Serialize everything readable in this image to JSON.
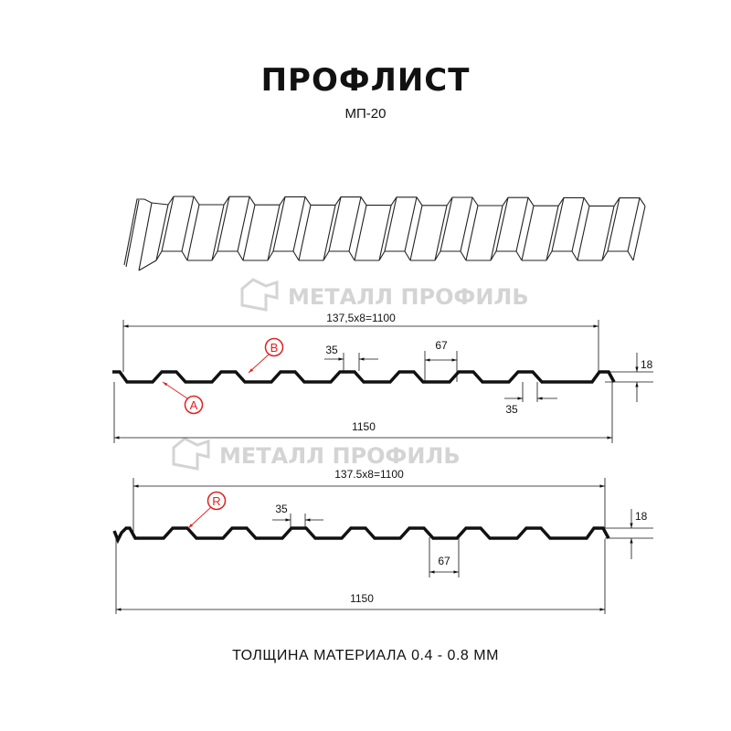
{
  "title": "ПРОФЛИСТ",
  "subtitle": "МП-20",
  "footer": "ТОЛЩИНА МАТЕРИАЛА 0.4 - 0.8 ММ",
  "watermark": "МЕТАЛЛ ПРОФИЛЬ",
  "colors": {
    "profile": "#111111",
    "callout": "#e0201f",
    "watermark": "#d4d4d4"
  },
  "profile1": {
    "pitch_label": "137,5x8=1100",
    "width_label": "1150",
    "top_label": "35",
    "gap_label": "67",
    "bottom_label": "35",
    "height_label": "18",
    "callout_a": "A",
    "callout_b": "B"
  },
  "profile2": {
    "pitch_label": "137.5x8=1100",
    "width_label": "1150",
    "top_label": "35",
    "gap_label": "67",
    "height_label": "18",
    "callout_r": "R"
  }
}
